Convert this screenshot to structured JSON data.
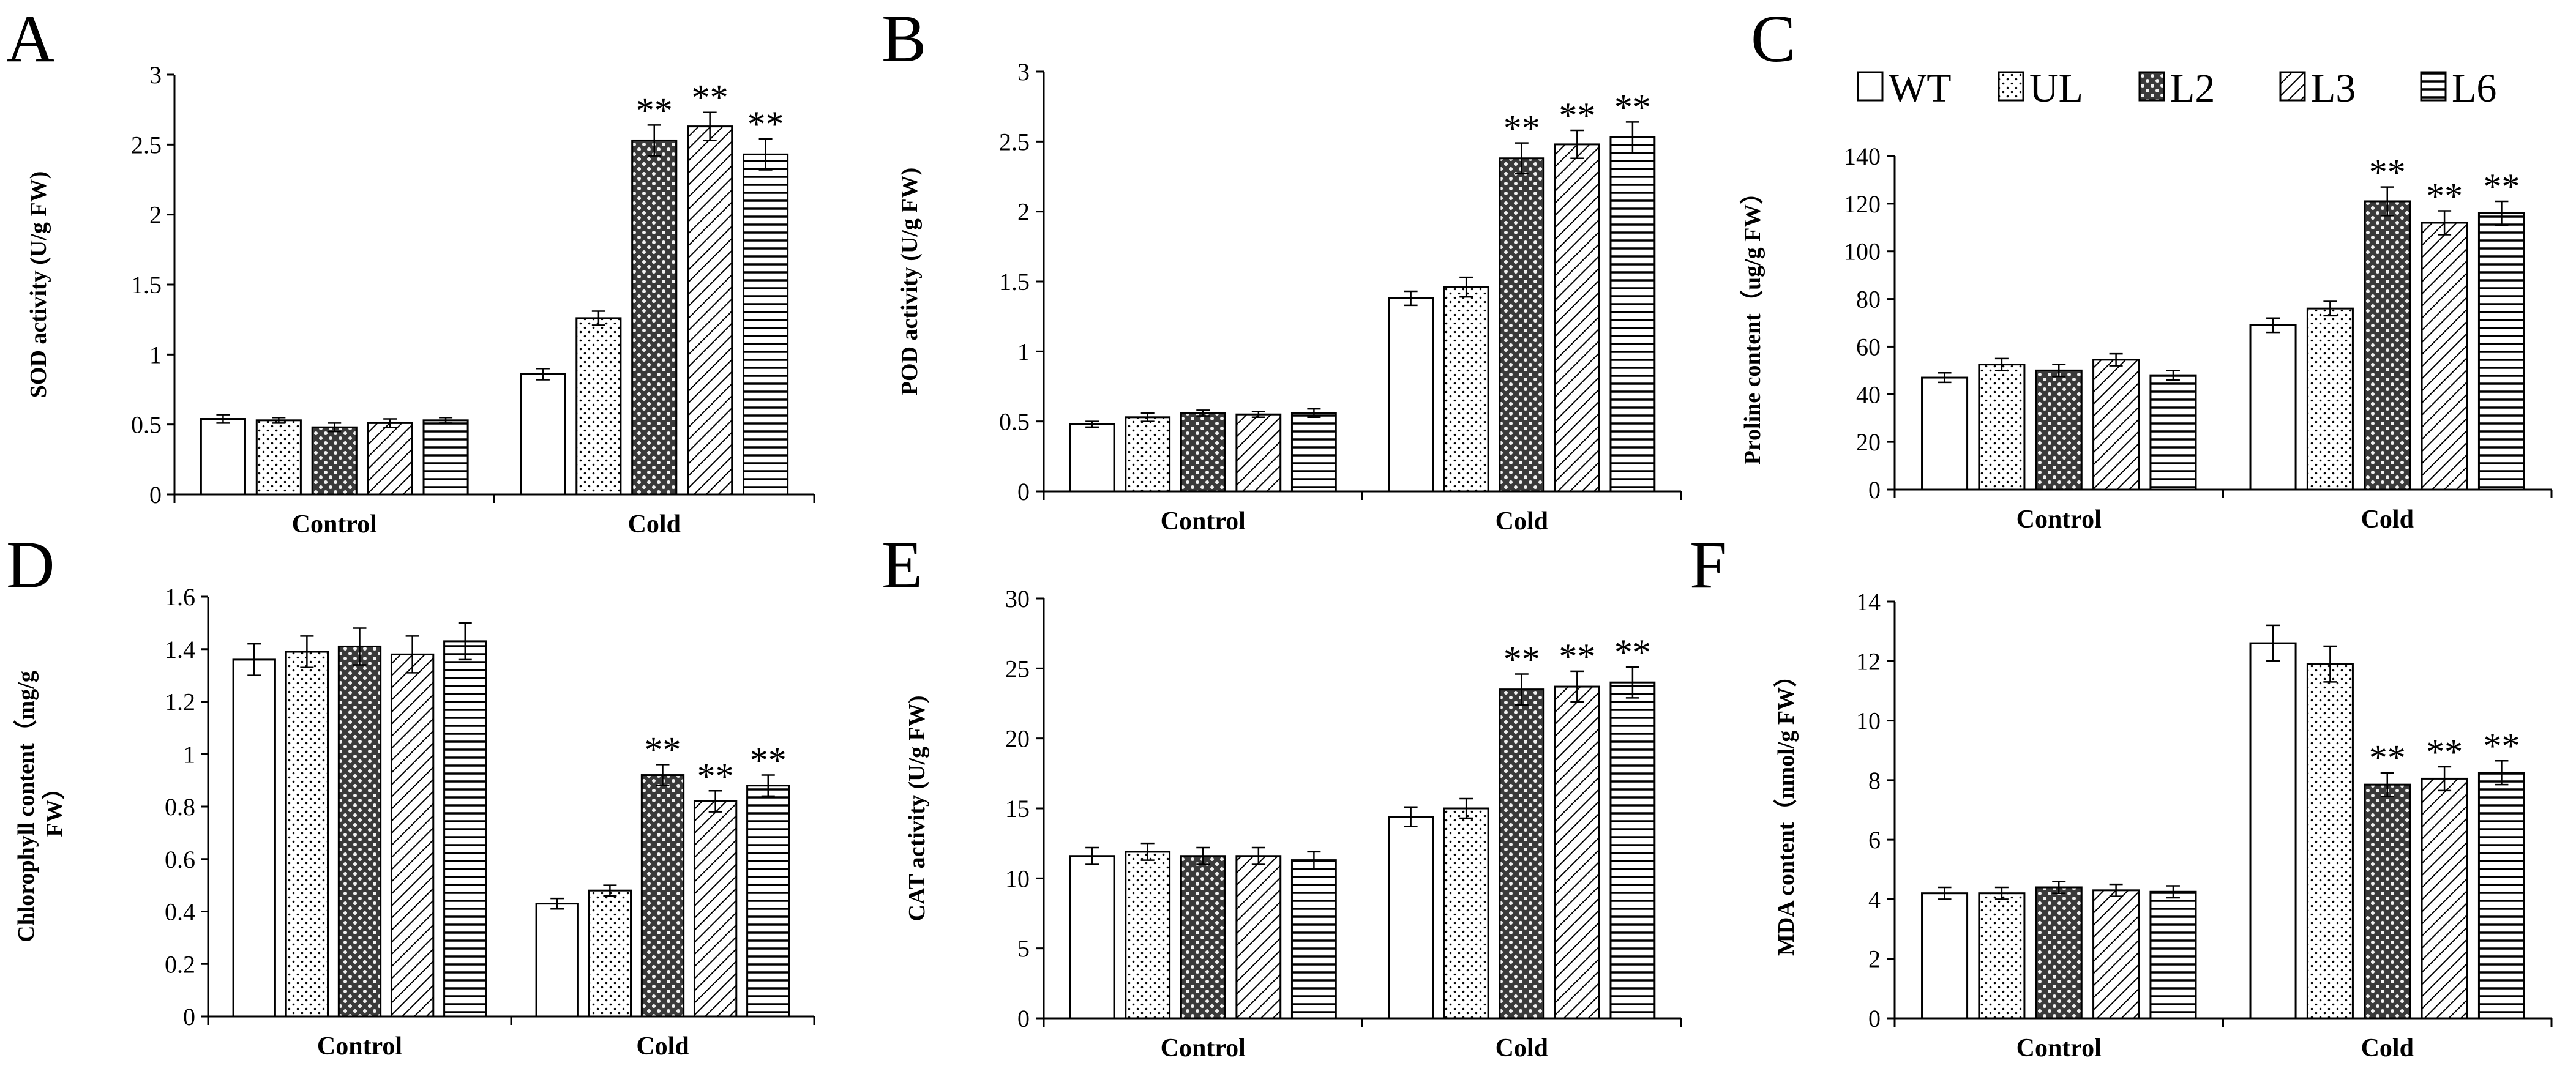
{
  "legend": {
    "entries": [
      "WT",
      "UL",
      "L2",
      "L3",
      "L6"
    ],
    "placement": "top, above panel C"
  },
  "chart_data": [
    {
      "type": "bar",
      "panel": "A",
      "ylabel": "SOD activity (U/g FW)",
      "categories": [
        "Control",
        "Cold"
      ],
      "ylim": [
        0,
        3
      ],
      "yticks": [
        0,
        0.5,
        1,
        1.5,
        2,
        2.5,
        3
      ],
      "tick_labels": [
        "0",
        "0.5",
        "1",
        "1.5",
        "2",
        "2.5",
        "3"
      ],
      "series": [
        {
          "name": "WT",
          "values": [
            0.54,
            0.86
          ],
          "errors": [
            0.03,
            0.04
          ]
        },
        {
          "name": "UL",
          "values": [
            0.53,
            1.26
          ],
          "errors": [
            0.02,
            0.05
          ]
        },
        {
          "name": "L2",
          "values": [
            0.48,
            2.53
          ],
          "errors": [
            0.03,
            0.11
          ]
        },
        {
          "name": "L3",
          "values": [
            0.51,
            2.63
          ],
          "errors": [
            0.03,
            0.1
          ]
        },
        {
          "name": "L6",
          "values": [
            0.53,
            2.43
          ],
          "errors": [
            0.02,
            0.11
          ]
        }
      ],
      "annotations": [
        "",
        "",
        "**",
        "**",
        "**"
      ]
    },
    {
      "type": "bar",
      "panel": "B",
      "ylabel": "POD activity (U/g FW)",
      "categories": [
        "Control",
        "Cold"
      ],
      "ylim": [
        0,
        3
      ],
      "yticks": [
        0,
        0.5,
        1,
        1.5,
        2,
        2.5,
        3
      ],
      "tick_labels": [
        "0",
        "0.5",
        "1",
        "1.5",
        "2",
        "2.5",
        "3"
      ],
      "series": [
        {
          "name": "WT",
          "values": [
            0.48,
            1.38
          ],
          "errors": [
            0.02,
            0.05
          ]
        },
        {
          "name": "UL",
          "values": [
            0.53,
            1.46
          ],
          "errors": [
            0.03,
            0.07
          ]
        },
        {
          "name": "L2",
          "values": [
            0.56,
            2.38
          ],
          "errors": [
            0.02,
            0.11
          ]
        },
        {
          "name": "L3",
          "values": [
            0.55,
            2.48
          ],
          "errors": [
            0.02,
            0.1
          ]
        },
        {
          "name": "L6",
          "values": [
            0.56,
            2.53
          ],
          "errors": [
            0.03,
            0.11
          ]
        }
      ],
      "annotations": [
        "",
        "",
        "**",
        "**",
        "**"
      ]
    },
    {
      "type": "bar",
      "panel": "C",
      "ylabel": "Proline content（ug/g FW）",
      "categories": [
        "Control",
        "Cold"
      ],
      "ylim": [
        0,
        140
      ],
      "yticks": [
        0,
        20,
        40,
        60,
        80,
        100,
        120,
        140
      ],
      "tick_labels": [
        "0",
        "20",
        "40",
        "60",
        "80",
        "100",
        "120",
        "140"
      ],
      "series": [
        {
          "name": "WT",
          "values": [
            47,
            69
          ],
          "errors": [
            2.0,
            3.0
          ]
        },
        {
          "name": "UL",
          "values": [
            52.5,
            76
          ],
          "errors": [
            2.5,
            3.0
          ]
        },
        {
          "name": "L2",
          "values": [
            50,
            121
          ],
          "errors": [
            2.5,
            6.0
          ]
        },
        {
          "name": "L3",
          "values": [
            54.5,
            112
          ],
          "errors": [
            2.5,
            5.0
          ]
        },
        {
          "name": "L6",
          "values": [
            48,
            116
          ],
          "errors": [
            2.0,
            5.0
          ]
        }
      ],
      "annotations": [
        "",
        "",
        "**",
        "**",
        "**"
      ]
    },
    {
      "type": "bar",
      "panel": "D",
      "ylabel_lines": [
        "Chlorophyll content（mg/g",
        "FW）"
      ],
      "categories": [
        "Control",
        "Cold"
      ],
      "ylim": [
        0,
        1.6
      ],
      "yticks": [
        0,
        0.2,
        0.4,
        0.6,
        0.8,
        1,
        1.2,
        1.4,
        1.6
      ],
      "tick_labels": [
        "0",
        "0.2",
        "0.4",
        "0.6",
        "0.8",
        "1",
        "1.2",
        "1.4",
        "1.6"
      ],
      "series": [
        {
          "name": "WT",
          "values": [
            1.36,
            0.43
          ],
          "errors": [
            0.06,
            0.02
          ]
        },
        {
          "name": "UL",
          "values": [
            1.39,
            0.48
          ],
          "errors": [
            0.06,
            0.02
          ]
        },
        {
          "name": "L2",
          "values": [
            1.41,
            0.92
          ],
          "errors": [
            0.07,
            0.04
          ]
        },
        {
          "name": "L3",
          "values": [
            1.38,
            0.82
          ],
          "errors": [
            0.07,
            0.04
          ]
        },
        {
          "name": "L6",
          "values": [
            1.43,
            0.88
          ],
          "errors": [
            0.07,
            0.04
          ]
        }
      ],
      "annotations": [
        "",
        "",
        "**",
        "**",
        "**"
      ]
    },
    {
      "type": "bar",
      "panel": "E",
      "ylabel": "CAT activity (U/g FW)",
      "categories": [
        "Control",
        "Cold"
      ],
      "ylim": [
        0,
        30
      ],
      "yticks": [
        0,
        5,
        10,
        15,
        20,
        25,
        30
      ],
      "tick_labels": [
        "0",
        "5",
        "10",
        "15",
        "20",
        "25",
        "30"
      ],
      "series": [
        {
          "name": "WT",
          "values": [
            11.6,
            14.4
          ],
          "errors": [
            0.6,
            0.7
          ]
        },
        {
          "name": "UL",
          "values": [
            11.9,
            15.0
          ],
          "errors": [
            0.6,
            0.7
          ]
        },
        {
          "name": "L2",
          "values": [
            11.6,
            23.5
          ],
          "errors": [
            0.6,
            1.1
          ]
        },
        {
          "name": "L3",
          "values": [
            11.6,
            23.7
          ],
          "errors": [
            0.6,
            1.1
          ]
        },
        {
          "name": "L6",
          "values": [
            11.3,
            24.0
          ],
          "errors": [
            0.6,
            1.1
          ]
        }
      ],
      "annotations": [
        "",
        "",
        "**",
        "**",
        "**"
      ]
    },
    {
      "type": "bar",
      "panel": "F",
      "ylabel": "MDA content（nmol/g FW）",
      "categories": [
        "Control",
        "Cold"
      ],
      "ylim": [
        0,
        14
      ],
      "yticks": [
        0,
        2,
        4,
        6,
        8,
        10,
        12,
        14
      ],
      "tick_labels": [
        "0",
        "2",
        "4",
        "6",
        "8",
        "10",
        "12",
        "14"
      ],
      "series": [
        {
          "name": "WT",
          "values": [
            4.2,
            12.6
          ],
          "errors": [
            0.2,
            0.6
          ]
        },
        {
          "name": "UL",
          "values": [
            4.2,
            11.9
          ],
          "errors": [
            0.2,
            0.6
          ]
        },
        {
          "name": "L2",
          "values": [
            4.4,
            7.85
          ],
          "errors": [
            0.2,
            0.4
          ]
        },
        {
          "name": "L3",
          "values": [
            4.3,
            8.05
          ],
          "errors": [
            0.2,
            0.4
          ]
        },
        {
          "name": "L6",
          "values": [
            4.25,
            8.25
          ],
          "errors": [
            0.2,
            0.4
          ]
        }
      ],
      "annotations": [
        "",
        "",
        "**",
        "**",
        "**"
      ]
    }
  ]
}
